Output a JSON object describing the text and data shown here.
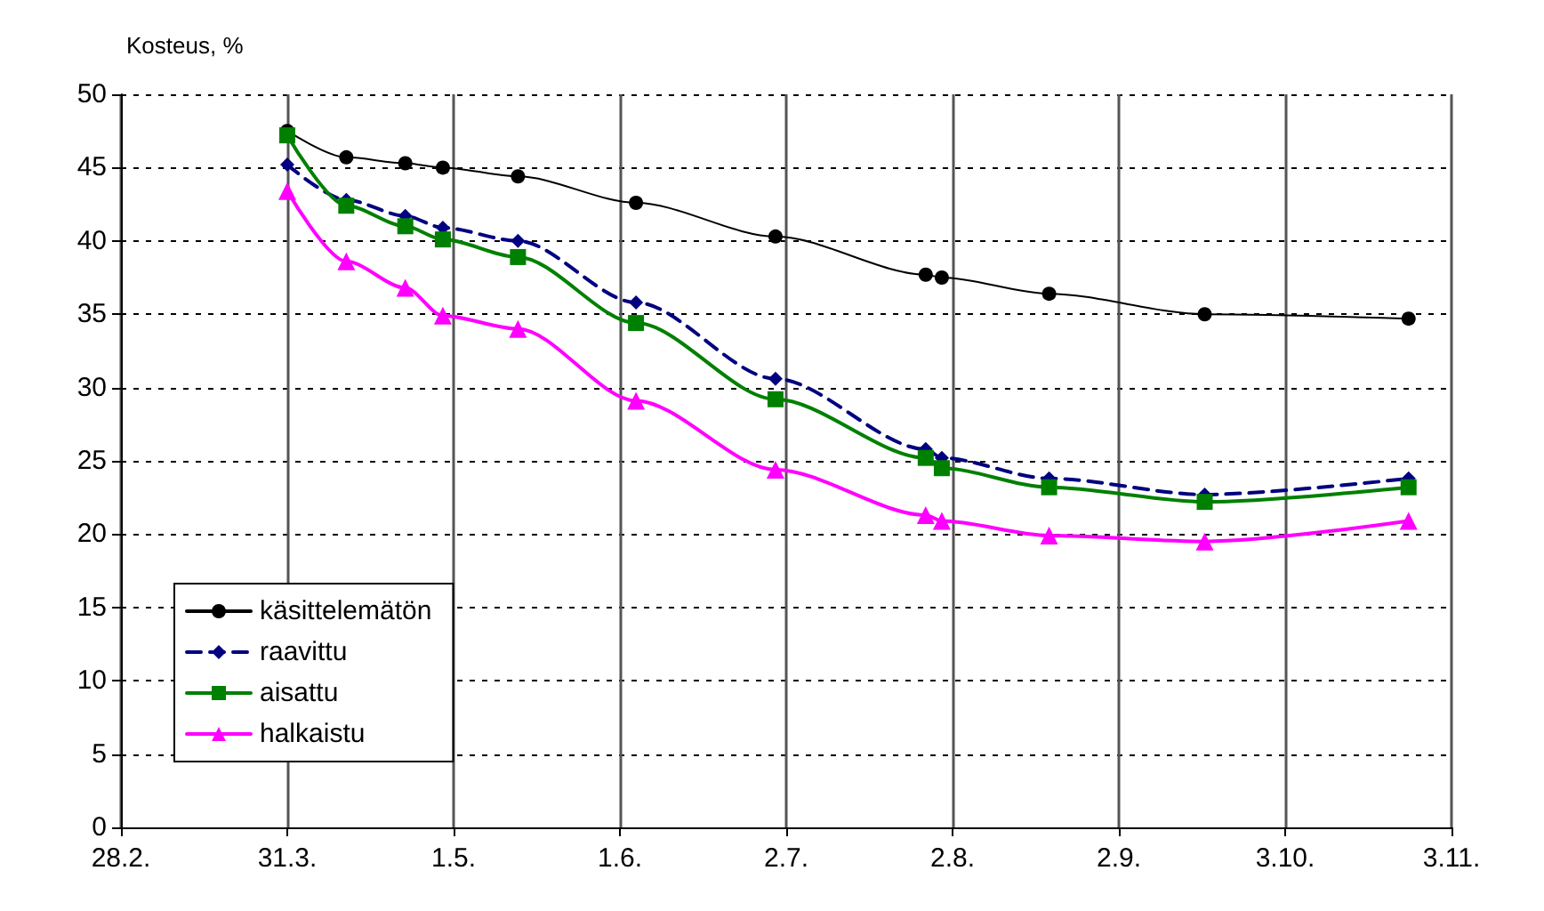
{
  "chart_data": {
    "type": "line",
    "ylabel": "Kosteus, %",
    "x": [
      "--03-31",
      "--04-11",
      "--04-22",
      "--04-29",
      "--05-13",
      "--06-04",
      "--06-30",
      "--07-28",
      "--07-31",
      "--08-20",
      "--09-18",
      "--10-26"
    ],
    "series": [
      {
        "name": "käsittelemätön",
        "color": "#000000",
        "marker": "circle",
        "line_style": "solid",
        "values": [
          47.5,
          45.7,
          45.3,
          45.0,
          44.4,
          42.6,
          40.3,
          37.7,
          37.5,
          36.4,
          35.0,
          34.7
        ]
      },
      {
        "name": "raavittu",
        "color": "#000080",
        "marker": "diamond",
        "line_style": "dashed",
        "values": [
          45.2,
          42.8,
          41.7,
          40.9,
          40.0,
          35.8,
          30.6,
          25.8,
          25.2,
          23.8,
          22.7,
          23.8
        ]
      },
      {
        "name": "aisattu",
        "color": "#008000",
        "marker": "square",
        "line_style": "solid",
        "values": [
          47.2,
          42.4,
          41.0,
          40.1,
          38.9,
          34.4,
          29.2,
          25.2,
          24.5,
          23.2,
          22.2,
          23.2
        ]
      },
      {
        "name": "halkaistu",
        "color": "#ff00ff",
        "marker": "triangle",
        "line_style": "solid",
        "values": [
          43.4,
          38.6,
          36.8,
          34.9,
          34.0,
          29.1,
          24.4,
          21.3,
          20.9,
          19.9,
          19.5,
          20.9
        ]
      }
    ],
    "xlim": [
      "--02-28",
      "--11-03"
    ],
    "xticks": [
      {
        "value": "--02-28",
        "label": "28.2."
      },
      {
        "value": "--03-31",
        "label": "31.3."
      },
      {
        "value": "--05-01",
        "label": "1.5."
      },
      {
        "value": "--06-01",
        "label": "1.6."
      },
      {
        "value": "--07-02",
        "label": "2.7."
      },
      {
        "value": "--08-02",
        "label": "2.8."
      },
      {
        "value": "--09-02",
        "label": "2.9."
      },
      {
        "value": "--10-03",
        "label": "3.10."
      },
      {
        "value": "--11-03",
        "label": "3.11."
      }
    ],
    "ylim": [
      0,
      50
    ],
    "yticks": [
      0,
      5,
      10,
      15,
      20,
      25,
      30,
      35,
      40,
      45,
      50
    ],
    "grid": true,
    "legend": "bottom left"
  }
}
